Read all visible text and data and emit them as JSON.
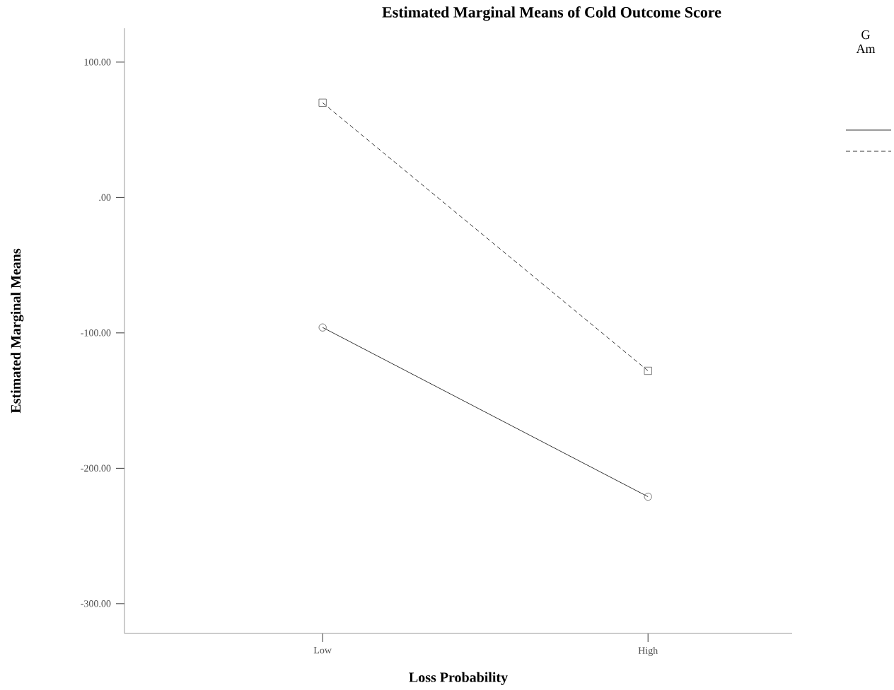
{
  "chart_data": {
    "type": "line",
    "title": "Estimated Marginal Means of Cold Outcome Score",
    "xlabel": "Loss Probability",
    "ylabel": "Estimated Marginal Means",
    "legend_title": "G Am",
    "categories": [
      "Low",
      "High"
    ],
    "ylim": [
      -322,
      125
    ],
    "yticks": [
      {
        "value": 100,
        "label": "100.00"
      },
      {
        "value": 0,
        "label": ".00"
      },
      {
        "value": -100,
        "label": "-100.00"
      },
      {
        "value": -200,
        "label": "-200.00"
      },
      {
        "value": -300,
        "label": "-300.00"
      }
    ],
    "grid": false,
    "series": [
      {
        "color": "#000000",
        "marker": "circle",
        "line_style": "solid",
        "values": [
          -96,
          -221
        ]
      },
      {
        "color": "#000000",
        "marker": "square",
        "line_style": "dashed",
        "values": [
          70,
          -128
        ]
      }
    ]
  }
}
